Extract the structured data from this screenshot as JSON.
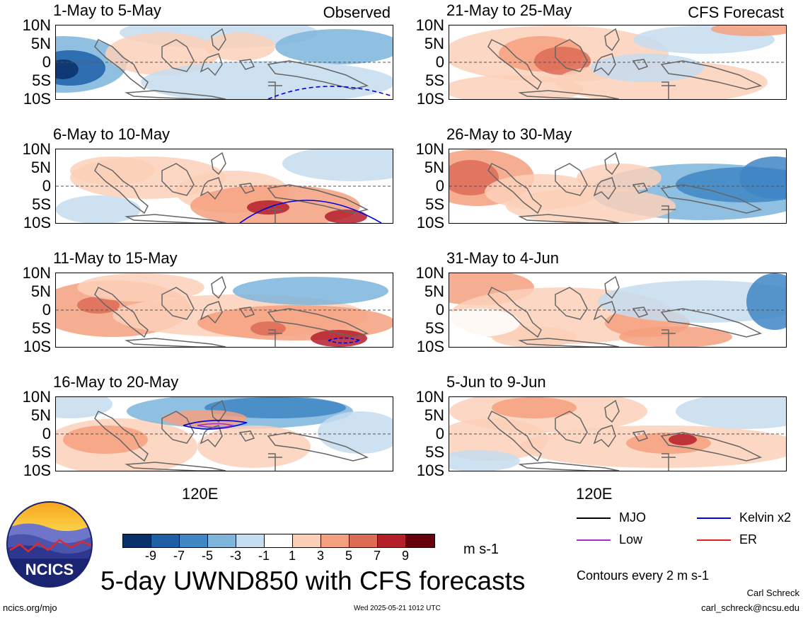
{
  "panels": [
    {
      "title": "1-May to 5-May",
      "tag": "Observed"
    },
    {
      "title": "6-May to 10-May",
      "tag": ""
    },
    {
      "title": "11-May to 15-May",
      "tag": ""
    },
    {
      "title": "16-May to 20-May",
      "tag": ""
    },
    {
      "title": "21-May to 25-May",
      "tag": "CFS Forecast"
    },
    {
      "title": "26-May to 30-May",
      "tag": ""
    },
    {
      "title": "31-May to 4-Jun",
      "tag": ""
    },
    {
      "title": "5-Jun to 9-Jun",
      "tag": ""
    }
  ],
  "lat_labels": [
    "10N",
    "5N",
    "0",
    "5S",
    "10S"
  ],
  "x_tick_label": "120E",
  "legend": {
    "mjo": "MJO",
    "kelvin": "Kelvin x2",
    "low": "Low",
    "er": "ER",
    "colors": {
      "mjo": "#000000",
      "kelvin": "#0000dd",
      "low": "#9933cc",
      "er": "#dd2222"
    }
  },
  "colorbar": {
    "labels": [
      "-9",
      "-7",
      "-5",
      "-3",
      "-1",
      "1",
      "3",
      "5",
      "7",
      "9"
    ],
    "colors": [
      "#08306b",
      "#1f5fa8",
      "#3f86c4",
      "#7db5dc",
      "#c6dcef",
      "#ffffff",
      "#fcd0b8",
      "#f4a07f",
      "#dd6b56",
      "#b41f2a",
      "#67000d"
    ],
    "units": "m s-1"
  },
  "contour_note": "Contours every 2 m s-1",
  "chart_title": "5-day UWND850 with CFS forecasts",
  "logo_text": "NCICS",
  "url": "ncics.org/mjo",
  "timestamp": "Wed 2025-05-21 1012 UTC",
  "author": "Carl Schreck",
  "email": "carl_schreck@ncsu.edu",
  "chart_data": {
    "type": "heatmap",
    "variable": "UWND850",
    "units": "m s-1",
    "ylim": [
      "10S",
      "10N"
    ],
    "y_ticks": [
      "10N",
      "5N",
      "0",
      "5S",
      "10S"
    ],
    "x_ticks": [
      "120E"
    ],
    "levels": [
      -9,
      -7,
      -5,
      -3,
      -1,
      1,
      3,
      5,
      7,
      9
    ],
    "panels": [
      {
        "title": "1-May to 5-May",
        "source": "Observed"
      },
      {
        "title": "6-May to 10-May",
        "source": "Observed"
      },
      {
        "title": "11-May to 15-May",
        "source": "Observed"
      },
      {
        "title": "16-May to 20-May",
        "source": "Observed"
      },
      {
        "title": "21-May to 25-May",
        "source": "CFS Forecast"
      },
      {
        "title": "26-May to 30-May",
        "source": "CFS Forecast"
      },
      {
        "title": "31-May to 4-Jun",
        "source": "CFS Forecast"
      },
      {
        "title": "5-Jun to 9-Jun",
        "source": "CFS Forecast"
      }
    ]
  }
}
